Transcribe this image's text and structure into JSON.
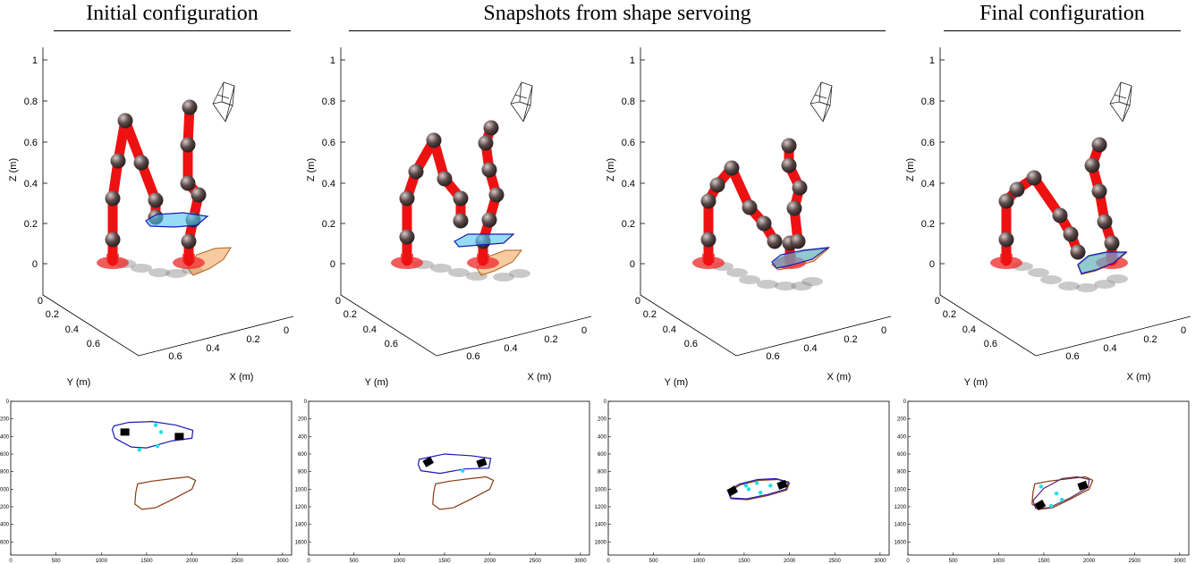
{
  "headers": [
    {
      "id": "initial",
      "text": "Initial configuration"
    },
    {
      "id": "snapshots",
      "text": "Snapshots from shape servoing"
    },
    {
      "id": "final",
      "text": "Final configuration"
    }
  ],
  "plot3d": {
    "z_ticks": [
      "1",
      "0.8",
      "0.6",
      "0.4",
      "0.2",
      "0"
    ],
    "y_ticks": [
      "0",
      "0.2",
      "0.4",
      "0.6"
    ],
    "x_ticks": [
      "0.6",
      "0.4",
      "0.2",
      "0"
    ],
    "xlabel": "X (m)",
    "ylabel": "Y (m)",
    "zlabel": "Z (m)"
  },
  "image_plot": {
    "x_ticks": [
      "0",
      "500",
      "1000",
      "1500",
      "2000",
      "2500",
      "3000"
    ],
    "y_ticks": [
      "0",
      "200",
      "400",
      "600",
      "800",
      "1000",
      "1200",
      "1400",
      "1600"
    ]
  },
  "colors": {
    "robot_link": "#ee1111",
    "joint": "#5a4848",
    "base": "#ee3333",
    "current_contour": "#1a1ab4",
    "target_contour": "#8a3a10",
    "feature_point": "#19e0ee",
    "marker": "#000000",
    "shadow": "#888888",
    "object_current": "#4fc7f0",
    "object_target": "#f0a050"
  },
  "panels": [
    {
      "id": "initial"
    },
    {
      "id": "snapshot-1"
    },
    {
      "id": "snapshot-2"
    },
    {
      "id": "final"
    }
  ]
}
